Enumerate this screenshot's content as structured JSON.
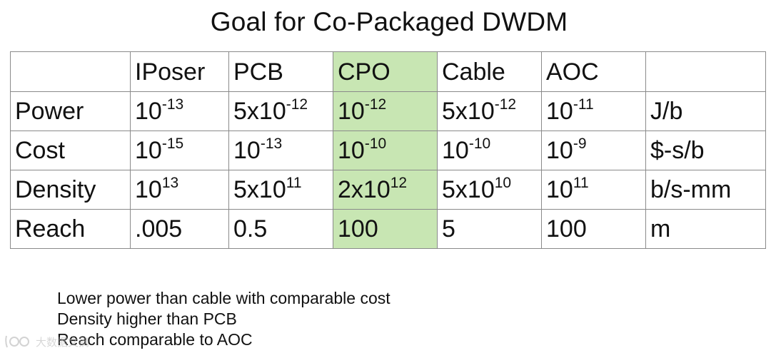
{
  "title": "Goal for Co-Packaged DWDM",
  "table": {
    "headers": [
      "",
      "IPoser",
      "PCB",
      "CPO",
      "Cable",
      "AOC",
      ""
    ],
    "highlight_color": "#c8e6b3",
    "rows": [
      {
        "label": "Power",
        "cells": [
          {
            "base": "10",
            "exp": "-13"
          },
          {
            "base": "5x10",
            "exp": "-12"
          },
          {
            "base": "10",
            "exp": "-12"
          },
          {
            "base": "5x10",
            "exp": "-12"
          },
          {
            "base": "10",
            "exp": "-11"
          }
        ],
        "unit": "J/b"
      },
      {
        "label": "Cost",
        "cells": [
          {
            "base": "10",
            "exp": "-15"
          },
          {
            "base": "10",
            "exp": "-13"
          },
          {
            "base": "10",
            "exp": "-10"
          },
          {
            "base": "10",
            "exp": "-10"
          },
          {
            "base": "10",
            "exp": "-9"
          }
        ],
        "unit": "$-s/b"
      },
      {
        "label": "Density",
        "cells": [
          {
            "base": "10",
            "exp": "13"
          },
          {
            "base": "5x10",
            "exp": "11"
          },
          {
            "base": "2x10",
            "exp": "12"
          },
          {
            "base": "5x10",
            "exp": "10"
          },
          {
            "base": "10",
            "exp": "11"
          }
        ],
        "unit": "b/s-mm"
      },
      {
        "label": "Reach",
        "cells": [
          {
            "base": ".005",
            "exp": ""
          },
          {
            "base": "0.5",
            "exp": ""
          },
          {
            "base": "100",
            "exp": ""
          },
          {
            "base": "5",
            "exp": ""
          },
          {
            "base": "100",
            "exp": ""
          }
        ],
        "unit": "m"
      }
    ]
  },
  "notes": [
    "Lower power than cable with comparable cost",
    "Density higher than PCB",
    "Reach comparable to AOC"
  ],
  "watermark": {
    "icon": "video-logo-icon",
    "text": "大数据文摘"
  }
}
